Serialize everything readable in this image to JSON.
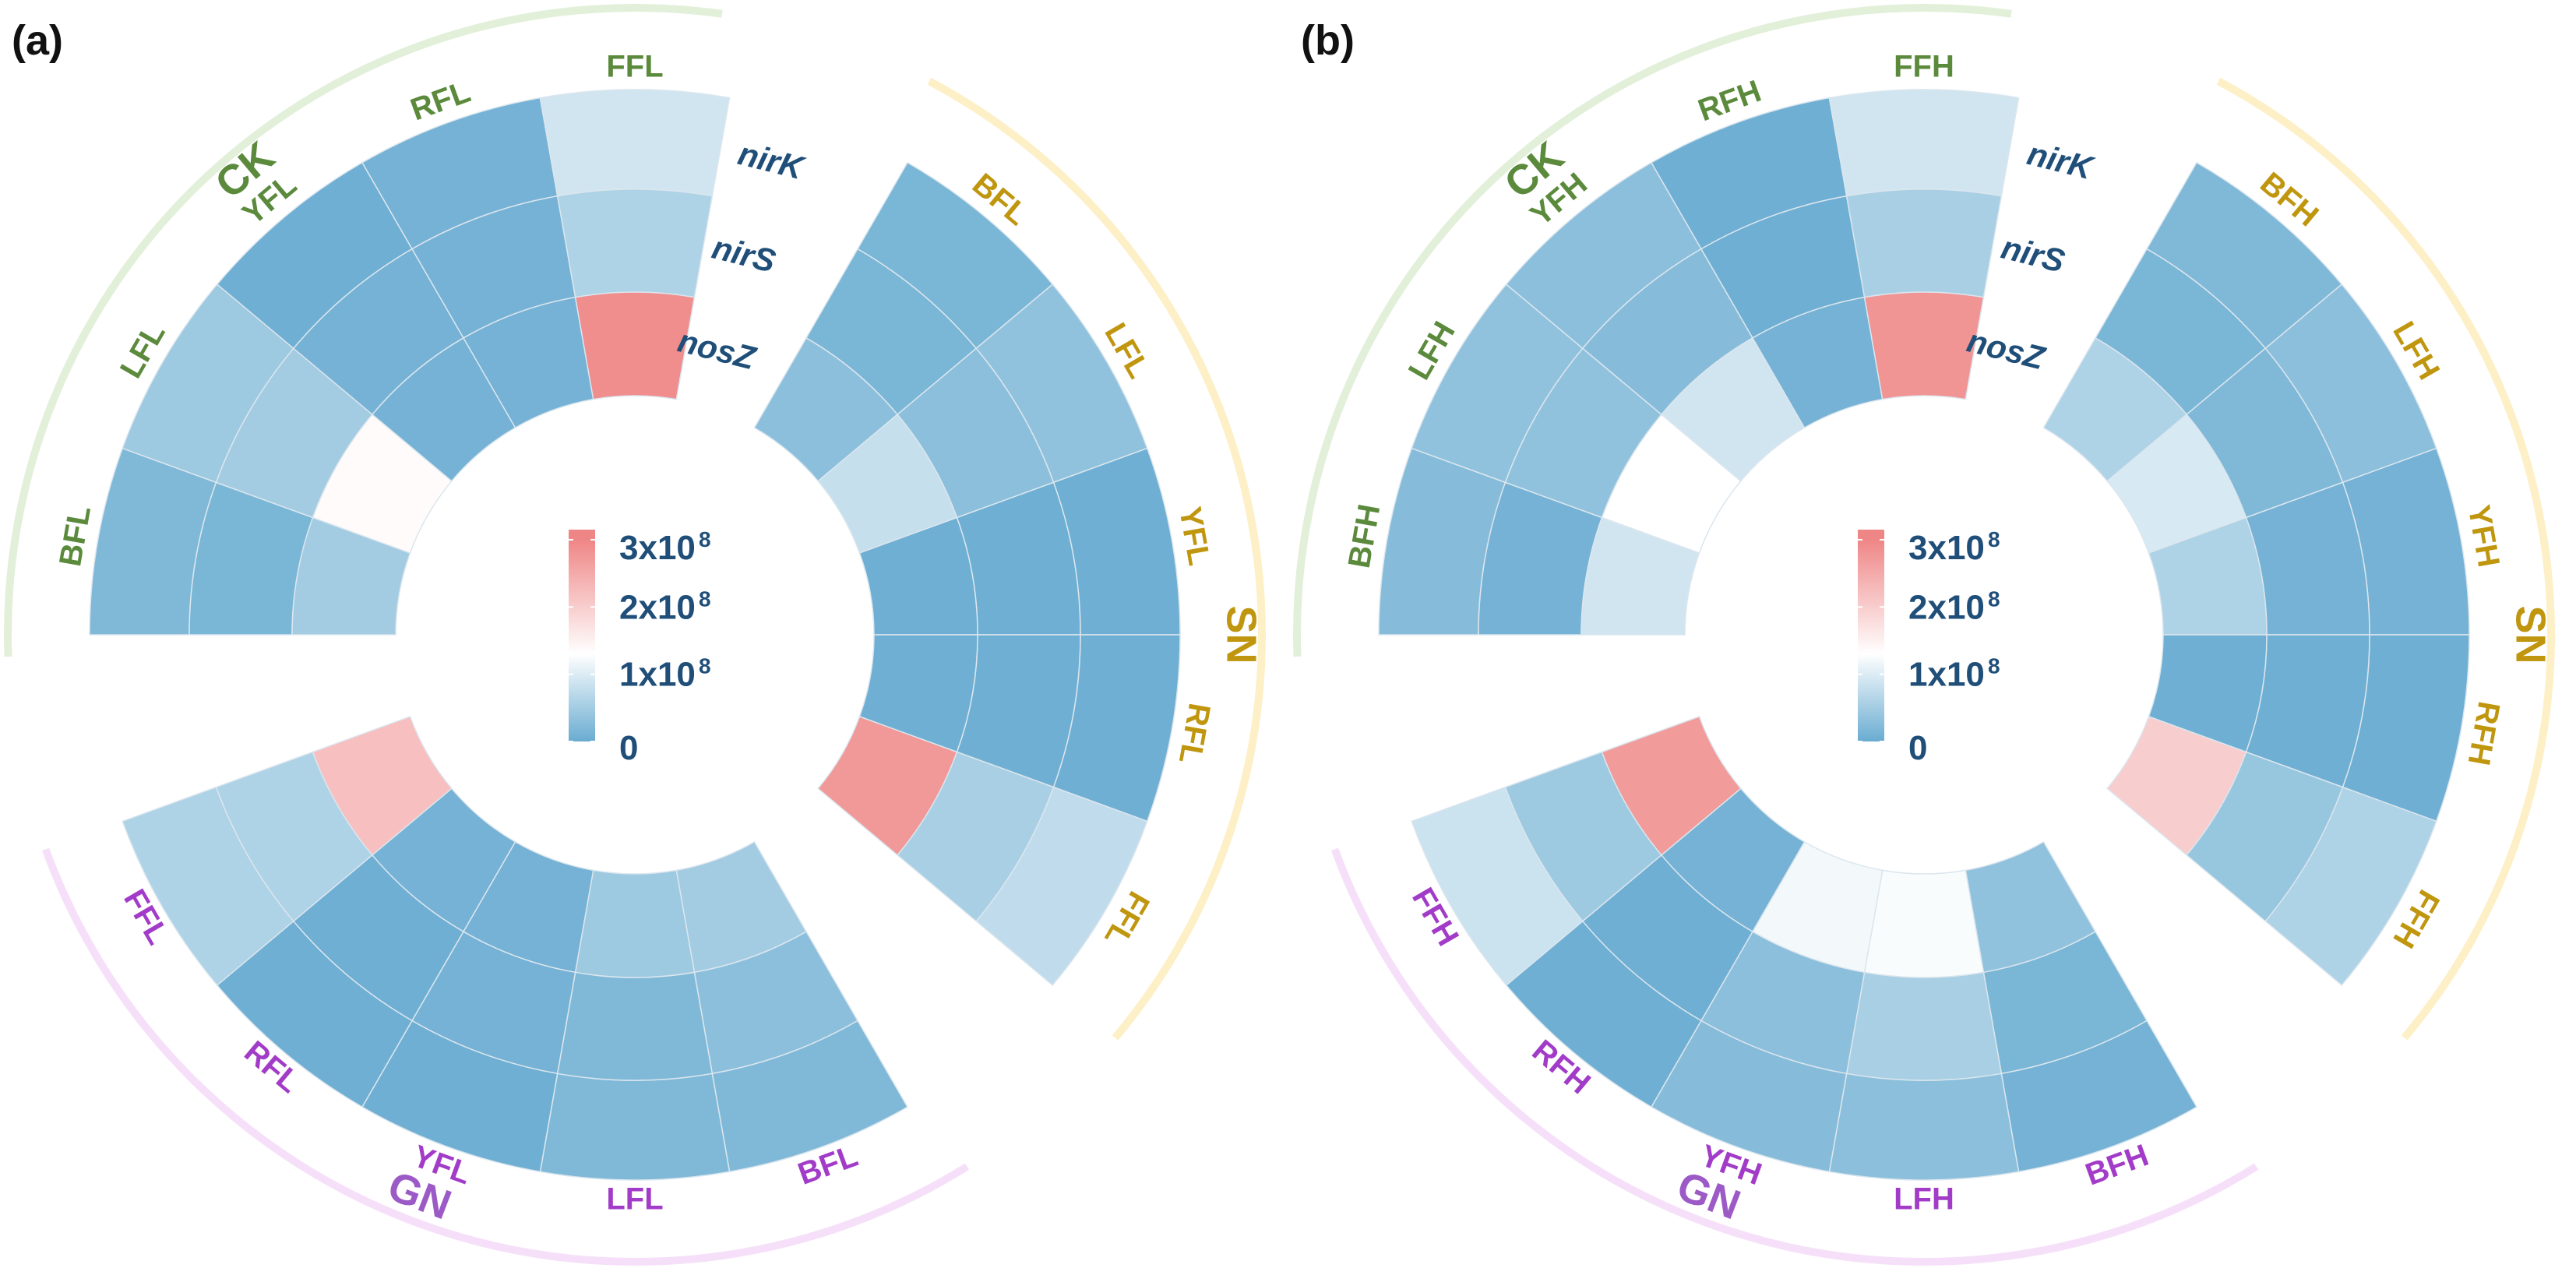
{
  "chart_data": [
    {
      "type": "heatmap",
      "layout": "circular",
      "panel_label": "(a)",
      "genes_outer_to_inner": [
        "nirK",
        "nirS",
        "nosZ"
      ],
      "colorbar": {
        "range": [
          0,
          300000000.0
        ],
        "colors": [
          {
            "value": 0,
            "color": "#69acd1"
          },
          {
            "value": 130000000.0,
            "color": "#ffffff"
          },
          {
            "value": 300000000.0,
            "color": "#ef8686"
          }
        ],
        "ticks": [
          {
            "value": 300000000.0,
            "label": "3x10",
            "exp": "8"
          },
          {
            "value": 200000000.0,
            "label": "2x10",
            "exp": "8"
          },
          {
            "value": 100000000.0,
            "label": "1x10",
            "exp": "8"
          },
          {
            "value": 0,
            "label": "0",
            "exp": ""
          }
        ]
      },
      "groups": [
        {
          "name": "CK",
          "text_color": "#5b8a3c",
          "arc_color": "#e2f0da",
          "samples": [
            {
              "name": "BFL",
              "nirK": 20000000.0,
              "nirS": 15000000.0,
              "nosZ": 50000000.0
            },
            {
              "name": "LFL",
              "nirK": 45000000.0,
              "nirS": 50000000.0,
              "nosZ": 135000000.0
            },
            {
              "name": "YFL",
              "nirK": 5000000.0,
              "nirS": 10000000.0,
              "nosZ": 10000000.0
            },
            {
              "name": "RFL",
              "nirK": 10000000.0,
              "nirS": 10000000.0,
              "nosZ": 10000000.0
            },
            {
              "name": "FFL",
              "nirK": 90000000.0,
              "nirS": 60000000.0,
              "nosZ": 290000000.0
            }
          ]
        },
        {
          "name": "SN",
          "text_color": "#c0960f",
          "arc_color": "#fdefc6",
          "samples": [
            {
              "name": "BFL",
              "nirK": 15000000.0,
              "nirS": 15000000.0,
              "nosZ": 30000000.0
            },
            {
              "name": "LFL",
              "nirK": 35000000.0,
              "nirS": 30000000.0,
              "nosZ": 80000000.0
            },
            {
              "name": "YFL",
              "nirK": 5000000.0,
              "nirS": 5000000.0,
              "nosZ": 5000000.0
            },
            {
              "name": "RFL",
              "nirK": 5000000.0,
              "nirS": 5000000.0,
              "nosZ": 5000000.0
            },
            {
              "name": "FFL",
              "nirK": 75000000.0,
              "nirS": 55000000.0,
              "nosZ": 275000000.0
            }
          ]
        },
        {
          "name": "GN",
          "text_color": "#a23cc8",
          "arc_color": "#f6e0f9",
          "name_color": "#9b5ac6",
          "samples": [
            {
              "name": "BFL",
              "nirK": 20000000.0,
              "nirS": 30000000.0,
              "nosZ": 50000000.0
            },
            {
              "name": "LFL",
              "nirK": 20000000.0,
              "nirS": 20000000.0,
              "nosZ": 45000000.0
            },
            {
              "name": "YFL",
              "nirK": 5000000.0,
              "nirS": 10000000.0,
              "nosZ": 10000000.0
            },
            {
              "name": "RFL",
              "nirK": 5000000.0,
              "nirS": 5000000.0,
              "nosZ": 10000000.0
            },
            {
              "name": "FFL",
              "nirK": 60000000.0,
              "nirS": 60000000.0,
              "nosZ": 220000000.0
            }
          ]
        }
      ]
    },
    {
      "type": "heatmap",
      "layout": "circular",
      "panel_label": "(b)",
      "genes_outer_to_inner": [
        "nirK",
        "nirS",
        "nosZ"
      ],
      "colorbar": {
        "range": [
          0,
          300000000.0
        ],
        "colors": [
          {
            "value": 0,
            "color": "#69acd1"
          },
          {
            "value": 130000000.0,
            "color": "#ffffff"
          },
          {
            "value": 300000000.0,
            "color": "#ef8686"
          }
        ],
        "ticks": [
          {
            "value": 300000000.0,
            "label": "3x10",
            "exp": "8"
          },
          {
            "value": 200000000.0,
            "label": "2x10",
            "exp": "8"
          },
          {
            "value": 100000000.0,
            "label": "1x10",
            "exp": "8"
          },
          {
            "value": 0,
            "label": "0",
            "exp": ""
          }
        ]
      },
      "groups": [
        {
          "name": "CK",
          "text_color": "#5b8a3c",
          "arc_color": "#e2f0da",
          "samples": [
            {
              "name": "BFH",
              "nirK": 25000000.0,
              "nirS": 10000000.0,
              "nosZ": 90000000.0
            },
            {
              "name": "LFH",
              "nirK": 35000000.0,
              "nirS": 35000000.0,
              "nosZ": 130000000.0
            },
            {
              "name": "YFH",
              "nirK": 30000000.0,
              "nirS": 25000000.0,
              "nosZ": 90000000.0
            },
            {
              "name": "RFH",
              "nirK": 5000000.0,
              "nirS": 5000000.0,
              "nosZ": 10000000.0
            },
            {
              "name": "FFH",
              "nirK": 90000000.0,
              "nirS": 55000000.0,
              "nosZ": 280000000.0
            }
          ]
        },
        {
          "name": "SN",
          "text_color": "#c0960f",
          "arc_color": "#fdefc6",
          "samples": [
            {
              "name": "BFH",
              "nirK": 20000000.0,
              "nirS": 15000000.0,
              "nosZ": 60000000.0
            },
            {
              "name": "LFH",
              "nirK": 30000000.0,
              "nirS": 20000000.0,
              "nosZ": 95000000.0
            },
            {
              "name": "YFH",
              "nirK": 10000000.0,
              "nirS": 10000000.0,
              "nosZ": 60000000.0
            },
            {
              "name": "RFH",
              "nirK": 5000000.0,
              "nirS": 5000000.0,
              "nosZ": 5000000.0
            },
            {
              "name": "FFH",
              "nirK": 60000000.0,
              "nirS": 40000000.0,
              "nosZ": 200000000.0
            }
          ]
        },
        {
          "name": "GN",
          "text_color": "#a23cc8",
          "arc_color": "#f6e0f9",
          "name_color": "#9b5ac6",
          "samples": [
            {
              "name": "BFH",
              "nirK": 10000000.0,
              "nirS": 15000000.0,
              "nosZ": 35000000.0
            },
            {
              "name": "LFH",
              "nirK": 30000000.0,
              "nirS": 55000000.0,
              "nosZ": 125000000.0
            },
            {
              "name": "YFH",
              "nirK": 25000000.0,
              "nirS": 30000000.0,
              "nosZ": 120000000.0
            },
            {
              "name": "RFH",
              "nirK": 5000000.0,
              "nirS": 5000000.0,
              "nosZ": 10000000.0
            },
            {
              "name": "FFH",
              "nirK": 85000000.0,
              "nirS": 45000000.0,
              "nosZ": 270000000.0
            }
          ]
        }
      ]
    }
  ]
}
